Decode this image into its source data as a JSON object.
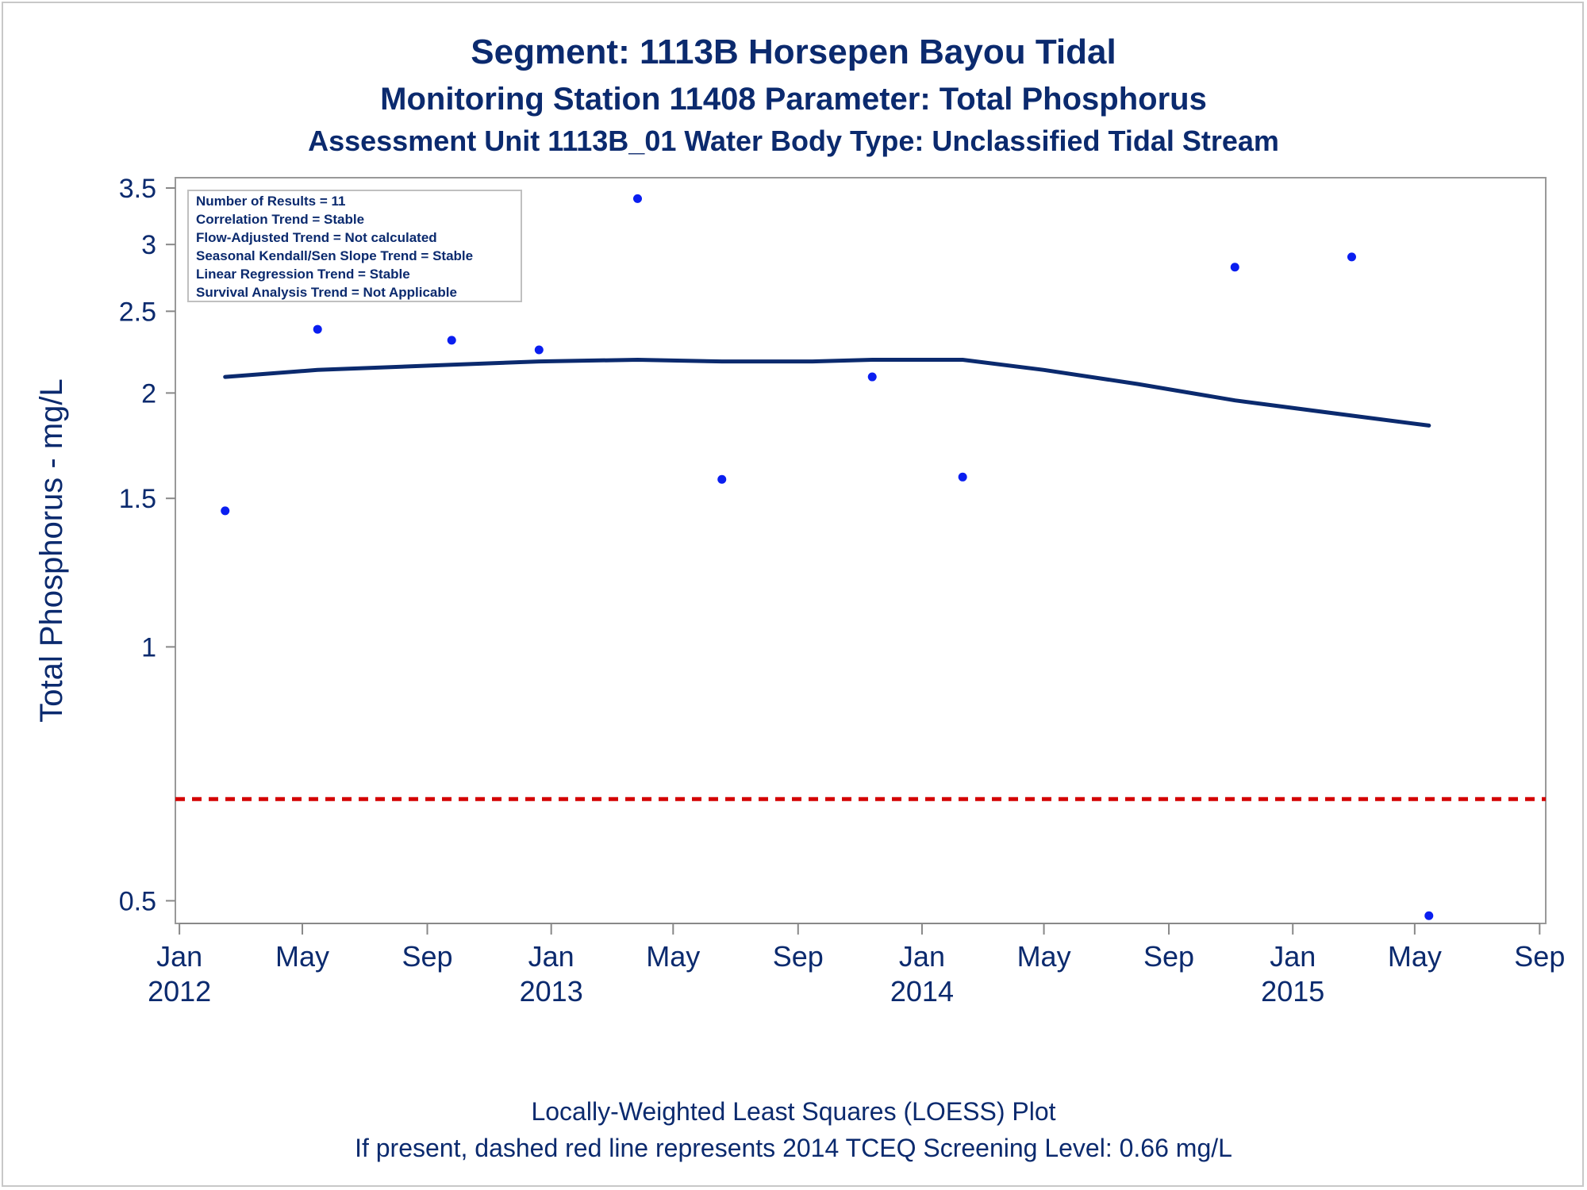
{
  "chart_data": {
    "type": "scatter",
    "title": "Segment: 1113B  Horsepen Bayou Tidal",
    "subtitle": "Monitoring Station 11408 Parameter: Total Phosphorus",
    "subtitle2": "Assessment Unit 1113B_01   Water Body Type: Unclassified Tidal Stream",
    "ylabel": "Total Phosphorus - mg/L",
    "xlabel": "",
    "yscale": "log",
    "ylim": [
      0.47,
      3.6
    ],
    "xlim": [
      "2011-12-28",
      "2015-09-07"
    ],
    "yticks": [
      0.5,
      1,
      1.5,
      2,
      2.5,
      3,
      3.5
    ],
    "ytick_labels": [
      "0.5",
      "1",
      "1.5",
      "2",
      "2.5",
      "3",
      "3.5"
    ],
    "xticks": [
      {
        "date": "2012-01-01",
        "label": "Jan",
        "year": "2012"
      },
      {
        "date": "2012-05-01",
        "label": "May",
        "year": ""
      },
      {
        "date": "2012-09-01",
        "label": "Sep",
        "year": ""
      },
      {
        "date": "2013-01-01",
        "label": "Jan",
        "year": "2013"
      },
      {
        "date": "2013-05-01",
        "label": "May",
        "year": ""
      },
      {
        "date": "2013-09-01",
        "label": "Sep",
        "year": ""
      },
      {
        "date": "2014-01-01",
        "label": "Jan",
        "year": "2014"
      },
      {
        "date": "2014-05-01",
        "label": "May",
        "year": ""
      },
      {
        "date": "2014-09-01",
        "label": "Sep",
        "year": ""
      },
      {
        "date": "2015-01-01",
        "label": "Jan",
        "year": "2015"
      },
      {
        "date": "2015-05-01",
        "label": "May",
        "year": ""
      },
      {
        "date": "2015-09-01",
        "label": "Sep",
        "year": ""
      }
    ],
    "points": [
      {
        "date": "2012-02-15",
        "y": 1.45
      },
      {
        "date": "2012-05-16",
        "y": 2.38
      },
      {
        "date": "2012-09-25",
        "y": 2.31
      },
      {
        "date": "2012-12-20",
        "y": 2.25
      },
      {
        "date": "2013-03-27",
        "y": 3.4
      },
      {
        "date": "2013-06-18",
        "y": 1.58
      },
      {
        "date": "2013-11-13",
        "y": 2.09
      },
      {
        "date": "2014-02-10",
        "y": 1.59
      },
      {
        "date": "2014-11-05",
        "y": 2.82
      },
      {
        "date": "2015-02-28",
        "y": 2.9
      },
      {
        "date": "2015-05-15",
        "y": 0.48
      }
    ],
    "loess": [
      {
        "date": "2012-02-15",
        "y": 2.09
      },
      {
        "date": "2012-05-16",
        "y": 2.13
      },
      {
        "date": "2012-09-25",
        "y": 2.16
      },
      {
        "date": "2012-12-20",
        "y": 2.18
      },
      {
        "date": "2013-03-27",
        "y": 2.19
      },
      {
        "date": "2013-06-18",
        "y": 2.18
      },
      {
        "date": "2013-09-15",
        "y": 2.18
      },
      {
        "date": "2013-11-13",
        "y": 2.19
      },
      {
        "date": "2014-02-10",
        "y": 2.19
      },
      {
        "date": "2014-05-01",
        "y": 2.13
      },
      {
        "date": "2014-08-01",
        "y": 2.05
      },
      {
        "date": "2014-11-05",
        "y": 1.96
      },
      {
        "date": "2015-02-28",
        "y": 1.88
      },
      {
        "date": "2015-05-15",
        "y": 1.83
      }
    ],
    "reference_line": {
      "y": 0.66,
      "style": "dashed",
      "color": "#d40000"
    },
    "colors": {
      "points": "#0a1ef0",
      "loess": "#0b2a6e",
      "text": "#0b2a6e",
      "axis": "#888888"
    },
    "inset_lines": [
      "Number of Results = 11",
      "Correlation Trend = Stable",
      "Flow-Adjusted Trend = Not calculated",
      "Seasonal Kendall/Sen Slope Trend = Stable",
      "Linear Regression Trend = Stable",
      "Survival Analysis Trend = Not Applicable"
    ],
    "inset_placement": "top-left",
    "footnotes": [
      "Locally-Weighted Least Squares (LOESS) Plot",
      "If present, dashed red line represents 2014 TCEQ Screening Level: 0.66 mg/L"
    ],
    "grid": false
  }
}
